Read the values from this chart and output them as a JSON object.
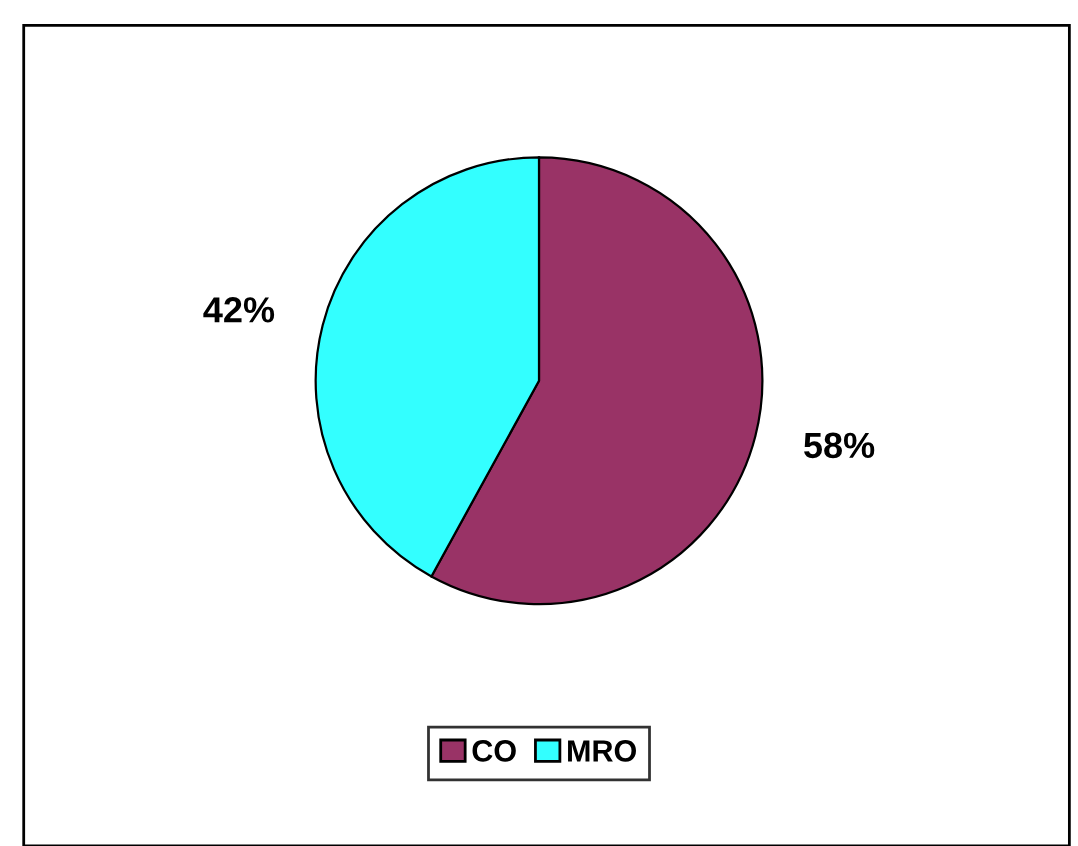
{
  "chart_data": {
    "type": "pie",
    "categories": [
      "CO",
      "MRO"
    ],
    "values": [
      58,
      42
    ],
    "colors": [
      "#993366",
      "#33ffff"
    ],
    "value_labels": [
      "58%",
      "42%"
    ],
    "legend": "bottom"
  }
}
